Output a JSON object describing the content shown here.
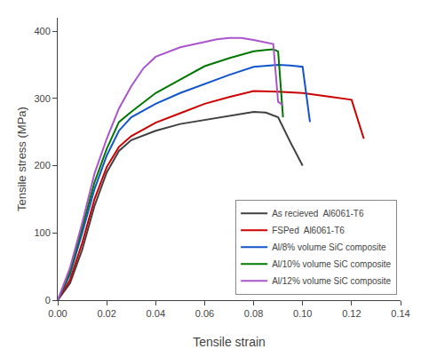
{
  "chart_data": {
    "type": "line",
    "xlabel": "Tensile strain",
    "ylabel": "Tensile stress (MPa)",
    "xlim": [
      0.0,
      0.14
    ],
    "ylim": [
      0,
      420
    ],
    "xticks": [
      {
        "value": 0.0,
        "label": "0.00"
      },
      {
        "value": 0.02,
        "label": "0.02"
      },
      {
        "value": 0.04,
        "label": "0.04"
      },
      {
        "value": 0.06,
        "label": "0.06"
      },
      {
        "value": 0.08,
        "label": "0.08"
      },
      {
        "value": 0.1,
        "label": "0.10"
      },
      {
        "value": 0.12,
        "label": "0.12"
      },
      {
        "value": 0.14,
        "label": "0.14"
      }
    ],
    "yticks": [
      0,
      100,
      200,
      300,
      400
    ],
    "grid": false,
    "legend": "lower right",
    "series": [
      {
        "name": "As recieved  Al6061-T6",
        "color": "#404040",
        "x": [
          0.0,
          0.005,
          0.01,
          0.015,
          0.02,
          0.025,
          0.03,
          0.04,
          0.05,
          0.06,
          0.07,
          0.08,
          0.085,
          0.09,
          0.095,
          0.1
        ],
        "values": [
          0,
          25,
          75,
          140,
          190,
          222,
          238,
          252,
          262,
          268,
          274,
          280,
          279,
          272,
          235,
          200
        ]
      },
      {
        "name": "FSPed  Al6061-T6",
        "color": "#cc0000",
        "x": [
          0.0,
          0.005,
          0.01,
          0.015,
          0.02,
          0.025,
          0.03,
          0.04,
          0.05,
          0.06,
          0.07,
          0.08,
          0.09,
          0.1,
          0.11,
          0.12,
          0.125
        ],
        "values": [
          0,
          30,
          85,
          150,
          198,
          228,
          244,
          264,
          278,
          292,
          302,
          311,
          310,
          308,
          303,
          298,
          240
        ]
      },
      {
        "name": "Al/8% volume SiC composite",
        "color": "#1155cc",
        "x": [
          0.0,
          0.005,
          0.01,
          0.015,
          0.02,
          0.025,
          0.03,
          0.04,
          0.05,
          0.06,
          0.07,
          0.08,
          0.085,
          0.09,
          0.095,
          0.1,
          0.103
        ],
        "values": [
          0,
          38,
          100,
          165,
          215,
          252,
          272,
          292,
          308,
          322,
          335,
          347,
          349,
          350,
          349,
          347,
          265
        ]
      },
      {
        "name": "Al/10% volume SiC composite",
        "color": "#007700",
        "x": [
          0.0,
          0.005,
          0.01,
          0.015,
          0.02,
          0.025,
          0.03,
          0.04,
          0.05,
          0.06,
          0.07,
          0.08,
          0.085,
          0.088,
          0.09,
          0.092
        ],
        "values": [
          0,
          42,
          108,
          175,
          225,
          265,
          280,
          308,
          328,
          348,
          360,
          370,
          372,
          373,
          370,
          272
        ]
      },
      {
        "name": "Al/12% volume SiC composite",
        "color": "#aa55cc",
        "x": [
          0.0,
          0.005,
          0.01,
          0.015,
          0.02,
          0.025,
          0.03,
          0.035,
          0.04,
          0.05,
          0.06,
          0.065,
          0.07,
          0.075,
          0.08,
          0.085,
          0.088,
          0.09,
          0.092
        ],
        "values": [
          0,
          48,
          115,
          188,
          240,
          285,
          318,
          345,
          362,
          376,
          384,
          388,
          390,
          390,
          387,
          383,
          381,
          295,
          290
        ]
      }
    ]
  }
}
